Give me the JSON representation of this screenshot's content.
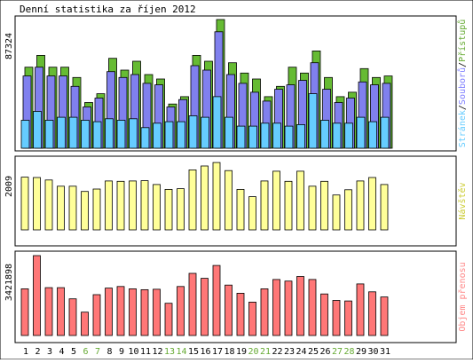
{
  "chart_data": {
    "type": "bar",
    "title": "Denní statistika za říjen 2012",
    "categories": [
      "1",
      "2",
      "3",
      "4",
      "5",
      "6",
      "7",
      "8",
      "9",
      "10",
      "11",
      "12",
      "13",
      "14",
      "15",
      "16",
      "17",
      "18",
      "19",
      "20",
      "21",
      "22",
      "23",
      "24",
      "25",
      "26",
      "27",
      "28",
      "29",
      "30",
      "31"
    ],
    "weekend_days": [
      "6",
      "7",
      "13",
      "14",
      "20",
      "21",
      "27",
      "28"
    ],
    "panels": [
      {
        "id": "hits",
        "ymax": 87324,
        "ymax_label": "87324",
        "right_label_parts": [
          "Stránek",
          "/",
          "Souborů",
          "/",
          "Přístupů"
        ],
        "right_label_colors": [
          "#66ccff",
          "#000000",
          "#8080ff",
          "#000000",
          "#66aa33"
        ],
        "series": [
          {
            "name": "Přístupů",
            "color": "#66bb33",
            "values": [
              55000,
              63000,
              55000,
              55000,
              48000,
              31000,
              37000,
              61000,
              53000,
              59000,
              50000,
              47000,
              30000,
              35000,
              63000,
              59000,
              87300,
              58000,
              51000,
              47000,
              35000,
              42000,
              55000,
              51000,
              66000,
              48000,
              35000,
              38000,
              54000,
              48000,
              49000
            ]
          },
          {
            "name": "Souborů",
            "color": "#8080ee",
            "values": [
              49000,
              55000,
              49000,
              49000,
              42000,
              28000,
              34000,
              52000,
              48000,
              50000,
              44000,
              43000,
              28000,
              33000,
              56000,
              53000,
              79000,
              50000,
              44000,
              38000,
              32000,
              40000,
              43000,
              46000,
              58000,
              40000,
              31000,
              34000,
              45000,
              43000,
              44000
            ]
          },
          {
            "name": "Stránek",
            "color": "#66ccff",
            "values": [
              19000,
              25000,
              19000,
              21000,
              21000,
              19000,
              18000,
              20000,
              19000,
              20000,
              14000,
              17000,
              18000,
              18000,
              22000,
              21000,
              35000,
              21000,
              15000,
              15000,
              17000,
              17000,
              15000,
              16000,
              37000,
              19000,
              17000,
              17000,
              21000,
              18000,
              21000
            ]
          }
        ]
      },
      {
        "id": "visits",
        "ymax": 2009,
        "ymax_label": "2009",
        "right_label_parts": [
          "Návštěv"
        ],
        "right_label_colors": [
          "#cccc33"
        ],
        "series": [
          {
            "name": "Návštěv",
            "color": "#ffff99",
            "values": [
              1510,
              1500,
              1430,
              1250,
              1250,
              1100,
              1170,
              1400,
              1390,
              1400,
              1410,
              1300,
              1160,
              1180,
              1720,
              1830,
              1930,
              1700,
              1160,
              950,
              1400,
              1680,
              1390,
              1680,
              1250,
              1390,
              1000,
              1150,
              1400,
              1500,
              1300
            ]
          }
        ]
      },
      {
        "id": "transfer",
        "ymax": 3421898,
        "ymax_label": "3421898",
        "right_label_parts": [
          "Objem přenosu"
        ],
        "right_label_colors": [
          "#ff8888"
        ],
        "series": [
          {
            "name": "Objem přenosu",
            "color": "#ff7777",
            "values": [
              2000000,
              3420000,
              2050000,
              2050000,
              1570000,
              1000000,
              1750000,
              2030000,
              2100000,
              2000000,
              1960000,
              1980000,
              1380000,
              2100000,
              2660000,
              2450000,
              3000000,
              2160000,
              1810000,
              1430000,
              2000000,
              2400000,
              2330000,
              2530000,
              2400000,
              1780000,
              1500000,
              1480000,
              2210000,
              1870000,
              1650000
            ]
          }
        ]
      }
    ]
  }
}
